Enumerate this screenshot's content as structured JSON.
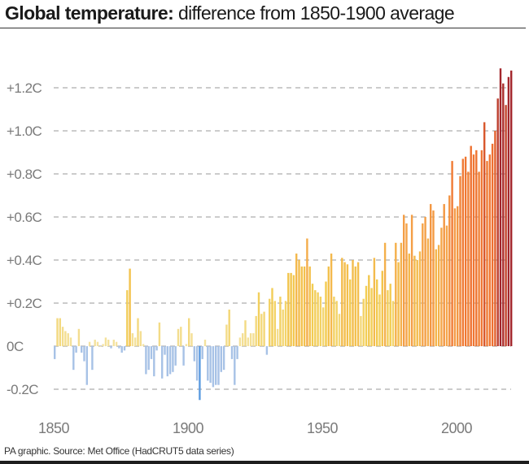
{
  "title_bold": "Global temperature:",
  "title_rest": " difference from 1850-1900 average",
  "source": "PA graphic. Source: Met Office (HadCRUT5 data series)",
  "chart_data": {
    "type": "bar",
    "title": "Global temperature: difference from 1850-1900 average",
    "xlabel": "",
    "ylabel": "",
    "ylim": [
      -0.3,
      1.35
    ],
    "grid": true,
    "yticks": [
      -0.2,
      0,
      0.2,
      0.4,
      0.6,
      0.8,
      1.0,
      1.2
    ],
    "ytick_labels": [
      "-0.2C",
      "0C",
      "+0.2C",
      "+0.4C",
      "+0.6C",
      "+0.8C",
      "+1.0C",
      "+1.2C"
    ],
    "xticks": [
      1850,
      1900,
      1950,
      2000
    ],
    "xtick_labels": [
      "1850",
      "1900",
      "1950",
      "2000"
    ],
    "x_start": 1850,
    "x_end": 2020,
    "values": [
      -0.06,
      0.13,
      0.13,
      0.09,
      0.07,
      0.06,
      0.04,
      -0.11,
      -0.03,
      0.08,
      -0.03,
      -0.07,
      -0.18,
      0.02,
      -0.11,
      0.03,
      0.02,
      0.0,
      0.01,
      0.04,
      0.03,
      -0.01,
      0.03,
      0.02,
      -0.01,
      -0.03,
      -0.02,
      0.26,
      0.36,
      0.06,
      0.04,
      0.13,
      0.07,
      0.01,
      -0.13,
      -0.11,
      -0.06,
      -0.14,
      -0.02,
      0.11,
      -0.15,
      -0.04,
      -0.14,
      -0.13,
      -0.12,
      -0.09,
      0.08,
      0.09,
      -0.09,
      0.01,
      0.13,
      0.06,
      -0.07,
      -0.16,
      -0.25,
      -0.06,
      0.03,
      -0.16,
      -0.17,
      -0.19,
      -0.18,
      -0.18,
      -0.12,
      -0.11,
      0.1,
      0.17,
      -0.06,
      -0.18,
      -0.06,
      0.04,
      0.06,
      0.12,
      0.04,
      0.06,
      0.06,
      0.14,
      0.25,
      0.15,
      0.16,
      -0.04,
      0.22,
      0.27,
      0.21,
      0.08,
      0.23,
      0.17,
      0.21,
      0.34,
      0.34,
      0.33,
      0.43,
      0.4,
      0.37,
      0.37,
      0.5,
      0.37,
      0.29,
      0.26,
      0.25,
      0.23,
      0.18,
      0.3,
      0.37,
      0.43,
      0.23,
      0.21,
      0.15,
      0.41,
      0.39,
      0.38,
      0.31,
      0.4,
      0.37,
      0.39,
      0.14,
      0.22,
      0.28,
      0.33,
      0.27,
      0.41,
      0.31,
      0.24,
      0.35,
      0.48,
      0.26,
      0.29,
      0.21,
      0.48,
      0.39,
      0.48,
      0.61,
      0.57,
      0.43,
      0.61,
      0.42,
      0.4,
      0.44,
      0.57,
      0.6,
      0.5,
      0.66,
      0.63,
      0.45,
      0.47,
      0.55,
      0.66,
      0.56,
      0.7,
      0.86,
      0.64,
      0.65,
      0.79,
      0.87,
      0.88,
      0.81,
      0.93,
      0.89,
      0.91,
      0.81,
      0.91,
      1.04,
      0.86,
      0.89,
      0.94,
      1.0,
      1.15,
      1.29,
      1.22,
      1.12,
      1.25,
      1.28
    ],
    "colors": {
      "negative": "#a7c2e6",
      "negative_strong": "#5b9be0",
      "low": "#f4e4a6",
      "mid": "#f2cb4e",
      "warm": "#f5a64a",
      "hot": "#ee6e2e",
      "hottest": "#a3262c"
    },
    "grid_color": "#9a9a9a",
    "text_color": "#7a7a7a"
  }
}
